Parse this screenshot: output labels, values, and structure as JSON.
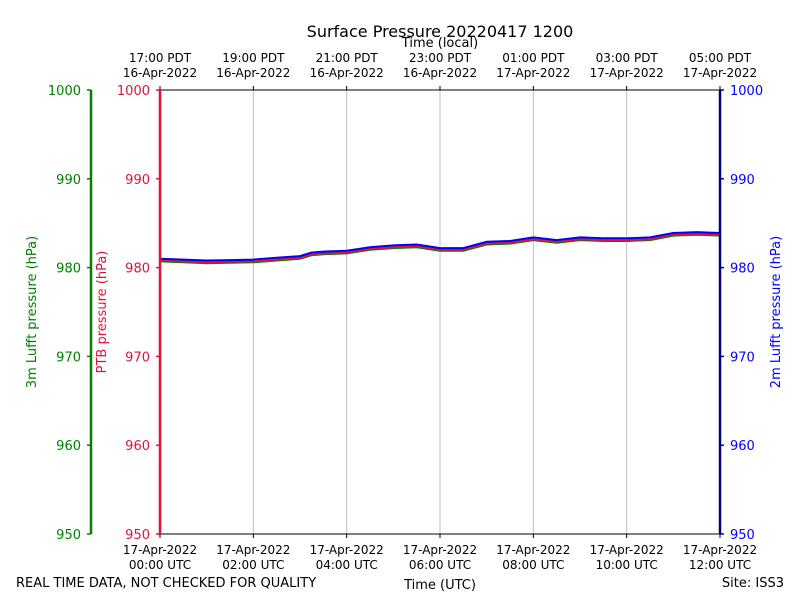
{
  "chart_data": {
    "type": "line",
    "title": "Surface Pressure 20220417 1200",
    "xlabel_bottom": "Time (UTC)",
    "xlabel_top": "Time (local)",
    "ylabel_outer_left": "3m Lufft pressure (hPa)",
    "ylabel_left": "PTB pressure (hPa)",
    "ylabel_right": "2m Lufft pressure (hPa)",
    "x_range_hours": [
      0,
      12
    ],
    "ylim": [
      950,
      1000
    ],
    "y_ticks": [
      950,
      960,
      970,
      980,
      990,
      1000
    ],
    "x_ticks_hours": [
      0,
      2,
      4,
      6,
      8,
      10,
      12
    ],
    "bottom_tick_labels": [
      [
        "17-Apr-2022",
        "00:00 UTC"
      ],
      [
        "17-Apr-2022",
        "02:00 UTC"
      ],
      [
        "17-Apr-2022",
        "04:00 UTC"
      ],
      [
        "17-Apr-2022",
        "06:00 UTC"
      ],
      [
        "17-Apr-2022",
        "08:00 UTC"
      ],
      [
        "17-Apr-2022",
        "10:00 UTC"
      ],
      [
        "17-Apr-2022",
        "12:00 UTC"
      ]
    ],
    "top_tick_labels": [
      [
        "17:00 PDT",
        "16-Apr-2022"
      ],
      [
        "19:00 PDT",
        "16-Apr-2022"
      ],
      [
        "21:00 PDT",
        "16-Apr-2022"
      ],
      [
        "23:00 PDT",
        "16-Apr-2022"
      ],
      [
        "01:00 PDT",
        "17-Apr-2022"
      ],
      [
        "03:00 PDT",
        "17-Apr-2022"
      ],
      [
        "05:00 PDT",
        "17-Apr-2022"
      ]
    ],
    "x_hours": [
      0,
      0.5,
      1,
      1.5,
      2,
      2.5,
      3,
      3.25,
      3.5,
      4,
      4.5,
      5,
      5.5,
      6,
      6.5,
      7,
      7.5,
      8,
      8.5,
      9,
      9.5,
      10,
      10.5,
      11,
      11.5,
      12
    ],
    "series": [
      {
        "name": "3m Lufft pressure",
        "color": "#008000",
        "values": [
          980.7,
          980.6,
          980.5,
          980.55,
          980.6,
          980.8,
          981.0,
          981.4,
          981.5,
          981.6,
          982.0,
          982.2,
          982.3,
          981.9,
          981.9,
          982.6,
          982.7,
          983.1,
          982.8,
          983.1,
          983.0,
          983.0,
          983.1,
          983.6,
          983.7,
          983.6
        ]
      },
      {
        "name": "PTB pressure",
        "color": "#dc143c",
        "values": [
          980.8,
          980.7,
          980.6,
          980.65,
          980.7,
          980.9,
          981.1,
          981.5,
          981.6,
          981.7,
          982.1,
          982.3,
          982.4,
          982.0,
          982.0,
          982.7,
          982.8,
          983.2,
          982.9,
          983.2,
          983.1,
          983.1,
          983.2,
          983.7,
          983.8,
          983.7
        ]
      },
      {
        "name": "2m Lufft pressure",
        "color": "#0000ff",
        "values": [
          981.0,
          980.9,
          980.8,
          980.85,
          980.9,
          981.1,
          981.3,
          981.7,
          981.8,
          981.9,
          982.3,
          982.5,
          982.6,
          982.2,
          982.2,
          982.9,
          983.0,
          983.4,
          983.1,
          983.4,
          983.3,
          983.3,
          983.4,
          983.9,
          984.0,
          983.9
        ]
      }
    ],
    "grid": true,
    "axis_colors": {
      "outer_left": "#008000",
      "left": "#dc143c",
      "right": "#00008b"
    }
  },
  "footer": {
    "left_note": "REAL TIME DATA, NOT CHECKED FOR QUALITY",
    "site": "Site: ISS3"
  }
}
